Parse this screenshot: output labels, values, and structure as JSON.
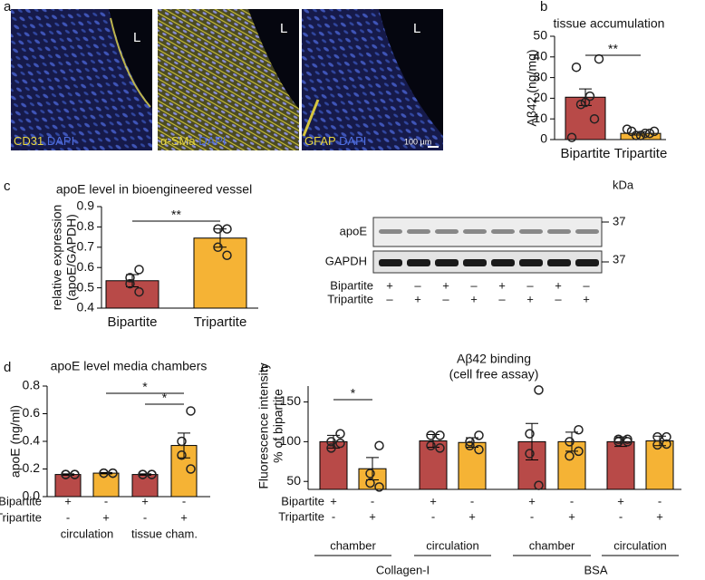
{
  "panel_labels": [
    "a",
    "b",
    "c",
    "d",
    "e"
  ],
  "micrographs": [
    {
      "stain": "CD31",
      "counter": "DAPI",
      "mark": "L"
    },
    {
      "stain": "α-SMa",
      "counter": "DAPI",
      "mark": "L"
    },
    {
      "stain": "GFAP",
      "counter": "DAPI",
      "mark": "L"
    }
  ],
  "scale_bar": "100 µm",
  "blot": {
    "unit": "kDa",
    "rows": [
      {
        "name": "apoE",
        "size": "37"
      },
      {
        "name": "GAPDH",
        "size": "37"
      }
    ],
    "conditions": [
      {
        "name": "Bipartite",
        "marks": [
          "+",
          "–",
          "+",
          "–",
          "+",
          "–",
          "+",
          "–"
        ]
      },
      {
        "name": "Tripartite",
        "marks": [
          "–",
          "+",
          "–",
          "+",
          "–",
          "+",
          "–",
          "+"
        ]
      }
    ]
  },
  "chart_data": [
    {
      "type": "bar",
      "title": "tissue accumulation",
      "y_label": [
        "Aβ42 (ng/mg)"
      ],
      "categories": [
        "Bipartite",
        "Tripartite"
      ],
      "values": [
        20.5,
        3
      ],
      "errors": [
        4,
        0.8
      ],
      "colors": [
        "#b84a48",
        "#f5b335"
      ],
      "points": [
        [
          39,
          35,
          21,
          18,
          17,
          10,
          1
        ],
        [
          4,
          4,
          3,
          2,
          2,
          3,
          5
        ]
      ],
      "ylim": [
        0,
        50
      ],
      "yticks": [
        0,
        10,
        20,
        30,
        40,
        50
      ],
      "significance": [
        {
          "pair": [
            0,
            1
          ],
          "label": "**"
        }
      ]
    },
    {
      "type": "bar",
      "title": "apoE level in bioengineered vessel",
      "y_label": [
        "relative expression",
        "(apoE/GAPDH)"
      ],
      "categories": [
        "Bipartite",
        "Tripartite"
      ],
      "values": [
        0.535,
        0.745
      ],
      "errors": [
        0.03,
        0.045
      ],
      "colors": [
        "#b84a48",
        "#f5b335"
      ],
      "points": [
        [
          0.59,
          0.52,
          0.55,
          0.48
        ],
        [
          0.79,
          0.79,
          0.7,
          0.66
        ]
      ],
      "ylim": [
        0.4,
        0.9
      ],
      "yticks": [
        0.4,
        0.5,
        0.6,
        0.7,
        0.8,
        0.9
      ],
      "significance": [
        {
          "pair": [
            0,
            1
          ],
          "label": "**"
        }
      ]
    },
    {
      "type": "bar",
      "title": "apoE level media chambers",
      "y_label": [
        "apoE (ng/ml)"
      ],
      "values": [
        0.16,
        0.17,
        0.16,
        0.37
      ],
      "errors": [
        0.005,
        0.005,
        0.005,
        0.09
      ],
      "colors": [
        "#b84a48",
        "#f5b335",
        "#b84a48",
        "#f5b335"
      ],
      "points": [
        [
          0.16,
          0.16,
          0.16,
          0.16
        ],
        [
          0.17,
          0.17,
          0.17,
          0.17
        ],
        [
          0.16,
          0.16,
          0.16,
          0.16
        ],
        [
          0.62,
          0.4,
          0.3,
          0.2
        ]
      ],
      "ylim": [
        0,
        0.8
      ],
      "yticks": [
        {
          "value": 0,
          "label": "0.0"
        },
        0.2,
        0.4,
        0.6,
        0.8
      ],
      "conditions": [
        {
          "name": "Bipartite",
          "marks": [
            "+",
            "-",
            "+",
            "-"
          ]
        },
        {
          "name": "Tripartite",
          "marks": [
            "-",
            "+",
            "-",
            "+"
          ]
        }
      ],
      "groups": [
        "circulation",
        "tissue cham."
      ],
      "significance": [
        {
          "pair": [
            1,
            3
          ],
          "label": "*"
        },
        {
          "pair": [
            2,
            3
          ],
          "label": "*"
        }
      ]
    },
    {
      "type": "bar",
      "title": "Aβ42 binding",
      "subtitle": "(cell free assay)",
      "y_label": [
        "Fluorescence intensity",
        "% of bipartite"
      ],
      "values": [
        100,
        66,
        101,
        99,
        100,
        100,
        100,
        101
      ],
      "errors": [
        8,
        14,
        8,
        6,
        23,
        12,
        6,
        6
      ],
      "colors": [
        "#b84a48",
        "#f5b335",
        "#b84a48",
        "#f5b335",
        "#b84a48",
        "#f5b335",
        "#b84a48",
        "#f5b335"
      ],
      "points": [
        [
          110,
          100,
          92,
          98
        ],
        [
          95,
          60,
          48,
          43
        ],
        [
          108,
          108,
          95,
          92
        ],
        [
          108,
          100,
          95,
          90
        ],
        [
          165,
          110,
          85,
          45
        ],
        [
          115,
          100,
          82,
          88
        ],
        [
          103,
          103,
          100,
          100
        ],
        [
          106,
          106,
          96,
          97
        ]
      ],
      "ylim": [
        40,
        170
      ],
      "yticks": [
        50,
        100,
        150
      ],
      "conditions": [
        {
          "name": "Bipartite",
          "marks": [
            "+",
            "-",
            "+",
            "-",
            "+",
            "-",
            "+",
            "-"
          ]
        },
        {
          "name": "Tripartite",
          "marks": [
            "-",
            "+",
            "-",
            "+",
            "-",
            "+",
            "-",
            "+"
          ]
        }
      ],
      "groups": [
        "chamber",
        "circulation",
        "chamber",
        "circulation"
      ],
      "supergroups": [
        "Collagen-I",
        "BSA"
      ],
      "significance": [
        {
          "pair": [
            0,
            1
          ],
          "label": "*"
        }
      ]
    }
  ]
}
